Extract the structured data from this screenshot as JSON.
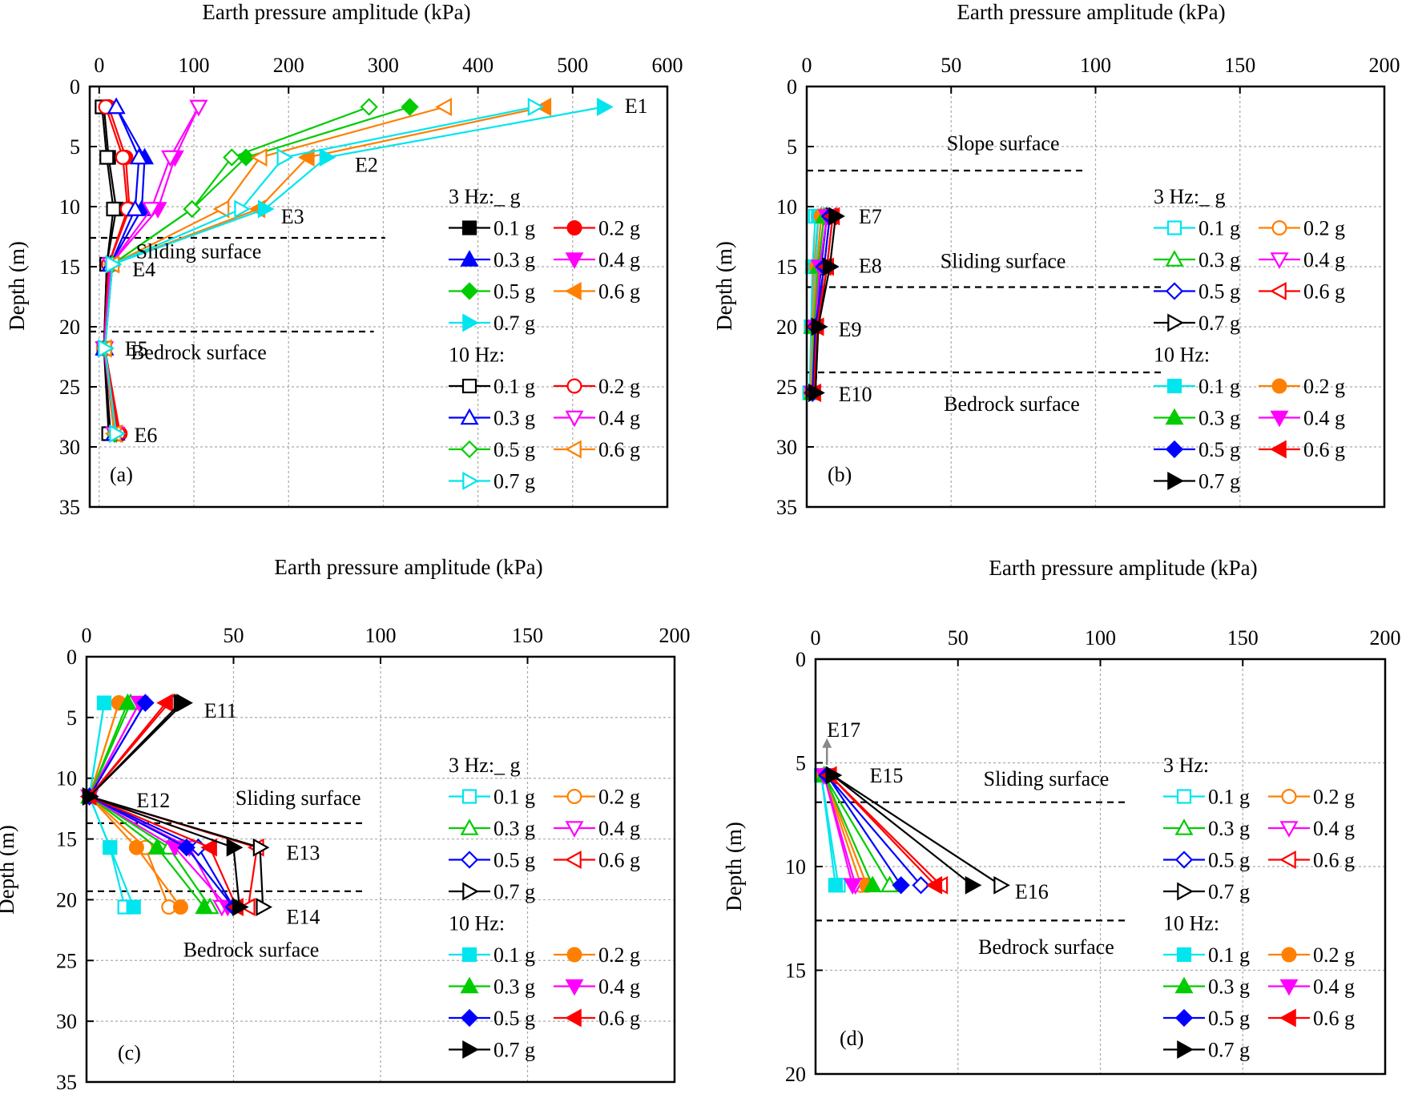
{
  "figure": {
    "panels": [
      {
        "id": "a",
        "x_title": "Earth pressure amplitude (kPa)",
        "y_title": "Depth (m)",
        "xlim": [
          -10,
          600
        ],
        "ylim": [
          0,
          35
        ],
        "xticks": [
          0,
          100,
          200,
          300,
          400,
          500,
          600
        ],
        "yticks": [
          0,
          5,
          10,
          15,
          20,
          25,
          30,
          35
        ],
        "panel_label": "(a)",
        "sensors": [
          {
            "label": "E1",
            "x": 555,
            "y": 1.6
          },
          {
            "label": "E2",
            "x": 270,
            "y": 6.5
          },
          {
            "label": "E3",
            "x": 192,
            "y": 10.8
          },
          {
            "label": "E4",
            "x": 35,
            "y": 15.2
          },
          {
            "label": "E5",
            "x": 27,
            "y": 21.8
          },
          {
            "label": "E6",
            "x": 37,
            "y": 29
          },
          {
            "label": "",
            "x": 0,
            "y": 0
          }
        ],
        "annotations": [
          {
            "text": "Sliding surface",
            "x": 105,
            "y": 14.3
          },
          {
            "text": "Bedrock surface",
            "x": 105,
            "y": 22.7
          }
        ],
        "dashed_lines": [
          {
            "y": 12.6,
            "x1": -10,
            "x2": 302
          },
          {
            "y": 20.4,
            "x1": -10,
            "x2": 290
          }
        ],
        "legend_headers": [
          "3 Hz:_ g",
          "10 Hz:"
        ]
      },
      {
        "id": "b",
        "x_title": "Earth pressure amplitude (kPa)",
        "y_title": "Depth (m)",
        "xlim": [
          0,
          200
        ],
        "ylim": [
          0,
          35
        ],
        "xticks": [
          0,
          50,
          100,
          150,
          200
        ],
        "yticks": [
          0,
          5,
          10,
          15,
          20,
          25,
          30,
          35
        ],
        "panel_label": "(b)",
        "sensors": [
          {
            "label": "E7",
            "x": 18,
            "y": 10.8
          },
          {
            "label": "E8",
            "x": 18,
            "y": 14.9
          },
          {
            "label": "E9",
            "x": 11,
            "y": 20.2
          },
          {
            "label": "E10",
            "x": 11,
            "y": 25.6
          },
          {
            "label": "",
            "x": 0,
            "y": 0
          }
        ],
        "annotations": [
          {
            "text": "Slope surface",
            "x": 68,
            "y": 5.3
          },
          {
            "text": "Sliding surface",
            "x": 68,
            "y": 15.1
          },
          {
            "text": "Bedrock surface",
            "x": 71,
            "y": 27
          }
        ],
        "dashed_lines": [
          {
            "y": 7,
            "x1": 0,
            "x2": 97
          },
          {
            "y": 16.7,
            "x1": 0,
            "x2": 123
          },
          {
            "y": 23.8,
            "x1": 0,
            "x2": 123
          }
        ],
        "legend_headers": [
          "3 Hz:_ g",
          "10 Hz:"
        ]
      },
      {
        "id": "c",
        "x_title": "Earth pressure amplitude (kPa)",
        "y_title": "Depth (m)",
        "xlim": [
          0,
          200
        ],
        "ylim": [
          0,
          35
        ],
        "xticks": [
          0,
          50,
          100,
          150,
          200
        ],
        "yticks": [
          0,
          5,
          10,
          15,
          20,
          25,
          30,
          35
        ],
        "panel_label": "(c)",
        "sensors": [
          {
            "label": "E11",
            "x": 40,
            "y": 4.4
          },
          {
            "label": "E12",
            "x": 17,
            "y": 11.8
          },
          {
            "label": "E13",
            "x": 68,
            "y": 16.1
          },
          {
            "label": "E14",
            "x": 68,
            "y": 21.4
          },
          {
            "label": "",
            "x": 0,
            "y": 0
          }
        ],
        "annotations": [
          {
            "text": "Sliding surface",
            "x": 72,
            "y": 12.2
          },
          {
            "text": "Bedrock surface",
            "x": 56,
            "y": 24.7
          }
        ],
        "dashed_lines": [
          {
            "y": 13.7,
            "x1": 0,
            "x2": 95
          },
          {
            "y": 19.3,
            "x1": 0,
            "x2": 95
          }
        ],
        "legend_headers": [
          "3 Hz:_ g",
          "10 Hz:"
        ]
      },
      {
        "id": "d",
        "x_title": "Earth pressure amplitude (kPa)",
        "y_title": "Depth (m)",
        "xlim": [
          0,
          200
        ],
        "ylim": [
          0,
          20
        ],
        "xticks": [
          0,
          50,
          100,
          150,
          200
        ],
        "yticks": [
          0,
          5,
          10,
          15,
          20
        ],
        "panel_label": "(d)",
        "sensors": [
          {
            "label": "E15",
            "x": 19,
            "y": 5.6
          },
          {
            "label": "E16",
            "x": 70,
            "y": 11.2
          },
          {
            "label": "E17",
            "x": 4,
            "y": 3.4
          },
          {
            "label": "",
            "x": 0,
            "y": 0
          }
        ],
        "annotations": [
          {
            "text": "Sliding surface",
            "x": 81,
            "y": 6.1
          },
          {
            "text": "Bedrock surface",
            "x": 81,
            "y": 14.2
          }
        ],
        "dashed_lines": [
          {
            "y": 6.9,
            "x1": 0,
            "x2": 109
          },
          {
            "y": 12.6,
            "x1": 0,
            "x2": 109
          }
        ],
        "legend_headers": [
          "3 Hz:",
          "10 Hz:"
        ]
      }
    ],
    "legend_labels": [
      "0.1 g",
      "0.2 g",
      "0.3 g",
      "0.4 g",
      "0.5 g",
      "0.6 g",
      "0.7 g"
    ]
  },
  "chart_data": [
    {
      "type": "line",
      "panel": "a",
      "x_axis": "Earth pressure amplitude (kPa)",
      "y_axis": "Depth (m)",
      "depths": [
        1.7,
        5.9,
        10.2,
        14.8,
        21.8,
        28.9
      ],
      "series": [
        {
          "name": "3 Hz 0.1 g",
          "values": [
            5,
            10,
            18,
            8,
            5,
            12
          ]
        },
        {
          "name": "3 Hz 0.2 g",
          "values": [
            10,
            28,
            32,
            10,
            6,
            22
          ]
        },
        {
          "name": "3 Hz 0.3 g",
          "values": [
            18,
            48,
            45,
            12,
            6,
            18
          ]
        },
        {
          "name": "3 Hz 0.4 g",
          "values": [
            105,
            80,
            62,
            12,
            6,
            18
          ]
        },
        {
          "name": "3 Hz 0.5 g",
          "values": [
            328,
            155,
            98,
            14,
            6,
            18
          ]
        },
        {
          "name": "3 Hz 0.6 g",
          "values": [
            470,
            220,
            168,
            14,
            6,
            18
          ]
        },
        {
          "name": "3 Hz 0.7 g",
          "values": [
            533,
            240,
            175,
            14,
            6,
            18
          ]
        },
        {
          "name": "10 Hz 0.1 g",
          "values": [
            3,
            8,
            15,
            8,
            5,
            10
          ]
        },
        {
          "name": "10 Hz 0.2 g",
          "values": [
            7,
            25,
            30,
            10,
            5,
            20
          ]
        },
        {
          "name": "10 Hz 0.3 g",
          "values": [
            18,
            42,
            38,
            12,
            5,
            16
          ]
        },
        {
          "name": "10 Hz 0.4 g",
          "values": [
            105,
            75,
            55,
            12,
            5,
            16
          ]
        },
        {
          "name": "10 Hz 0.5 g",
          "values": [
            285,
            140,
            98,
            14,
            6,
            16
          ]
        },
        {
          "name": "10 Hz 0.6 g",
          "values": [
            365,
            170,
            130,
            14,
            6,
            16
          ]
        },
        {
          "name": "10 Hz 0.7 g",
          "values": [
            460,
            195,
            150,
            14,
            6,
            18
          ]
        }
      ]
    },
    {
      "type": "line",
      "panel": "b",
      "x_axis": "Earth pressure amplitude (kPa)",
      "y_axis": "Depth (m)",
      "depths": [
        10.8,
        15.0,
        20.0,
        25.5
      ],
      "series": [
        {
          "name": "3 Hz 0.1 g",
          "values": [
            3,
            2,
            1.5,
            1
          ]
        },
        {
          "name": "3 Hz 0.2 g",
          "values": [
            4,
            2.5,
            2,
            1.5
          ]
        },
        {
          "name": "3 Hz 0.3 g",
          "values": [
            5,
            3.5,
            2,
            2
          ]
        },
        {
          "name": "3 Hz 0.4 g",
          "values": [
            6,
            4,
            2.5,
            2
          ]
        },
        {
          "name": "3 Hz 0.5 g",
          "values": [
            7,
            5,
            3,
            2
          ]
        },
        {
          "name": "3 Hz 0.6 g",
          "values": [
            8,
            6,
            3.5,
            2.5
          ]
        },
        {
          "name": "3 Hz 0.7 g",
          "values": [
            9,
            7,
            4,
            3
          ]
        },
        {
          "name": "10 Hz 0.1 g",
          "values": [
            4,
            3,
            2,
            1.5
          ]
        },
        {
          "name": "10 Hz 0.2 g",
          "values": [
            5,
            3.5,
            2,
            1.5
          ]
        },
        {
          "name": "10 Hz 0.3 g",
          "values": [
            6,
            4,
            2.5,
            2
          ]
        },
        {
          "name": "10 Hz 0.4 g",
          "values": [
            7,
            4.5,
            3,
            2
          ]
        },
        {
          "name": "10 Hz 0.5 g",
          "values": [
            8,
            6,
            3,
            2
          ]
        },
        {
          "name": "10 Hz 0.6 g",
          "values": [
            9,
            7,
            3.5,
            2.5
          ]
        },
        {
          "name": "10 Hz 0.7 g",
          "values": [
            10,
            8,
            4,
            3
          ]
        }
      ]
    },
    {
      "type": "line",
      "panel": "c",
      "x_axis": "Earth pressure amplitude (kPa)",
      "y_axis": "Depth (m)",
      "depths": [
        3.8,
        11.5,
        15.7,
        20.6
      ],
      "series": [
        {
          "name": "3 Hz 0.1 g",
          "values": [
            6,
            1,
            8,
            13
          ]
        },
        {
          "name": "3 Hz 0.2 g",
          "values": [
            11,
            1,
            20,
            28
          ]
        },
        {
          "name": "3 Hz 0.3 g",
          "values": [
            15,
            1,
            28,
            42
          ]
        },
        {
          "name": "3 Hz 0.4 g",
          "values": [
            18,
            1,
            35,
            46
          ]
        },
        {
          "name": "3 Hz 0.5 g",
          "values": [
            20,
            1,
            38,
            50
          ]
        },
        {
          "name": "3 Hz 0.6 g",
          "values": [
            28,
            1,
            58,
            55
          ]
        },
        {
          "name": "3 Hz 0.7 g",
          "values": [
            33,
            1,
            59,
            60
          ]
        },
        {
          "name": "10 Hz 0.1 g",
          "values": [
            6,
            1,
            8,
            16
          ]
        },
        {
          "name": "10 Hz 0.2 g",
          "values": [
            11,
            1,
            17,
            32
          ]
        },
        {
          "name": "10 Hz 0.3 g",
          "values": [
            14,
            1,
            24,
            40
          ]
        },
        {
          "name": "10 Hz 0.4 g",
          "values": [
            18,
            1,
            30,
            48
          ]
        },
        {
          "name": "10 Hz 0.5 g",
          "values": [
            20,
            1,
            34,
            50
          ]
        },
        {
          "name": "10 Hz 0.6 g",
          "values": [
            27,
            1,
            42,
            51
          ]
        },
        {
          "name": "10 Hz 0.7 g",
          "values": [
            32,
            1,
            50,
            52
          ]
        }
      ]
    },
    {
      "type": "line",
      "panel": "d",
      "x_axis": "Earth pressure amplitude (kPa)",
      "y_axis": "Depth (m)",
      "depths": [
        5.6,
        10.9
      ],
      "series": [
        {
          "name": "3 Hz 0.1 g",
          "values": [
            2,
            8
          ]
        },
        {
          "name": "3 Hz 0.2 g",
          "values": [
            3,
            16
          ]
        },
        {
          "name": "3 Hz 0.3 g",
          "values": [
            3,
            26
          ]
        },
        {
          "name": "3 Hz 0.4 g",
          "values": [
            3,
            14
          ]
        },
        {
          "name": "3 Hz 0.5 g",
          "values": [
            4,
            37
          ]
        },
        {
          "name": "3 Hz 0.6 g",
          "values": [
            5,
            44
          ]
        },
        {
          "name": "3 Hz 0.7 g",
          "values": [
            6,
            65
          ]
        },
        {
          "name": "10 Hz 0.1 g",
          "values": [
            2,
            7
          ]
        },
        {
          "name": "10 Hz 0.2 g",
          "values": [
            3,
            18
          ]
        },
        {
          "name": "10 Hz 0.3 g",
          "values": [
            3,
            20
          ]
        },
        {
          "name": "10 Hz 0.4 g",
          "values": [
            3,
            13
          ]
        },
        {
          "name": "10 Hz 0.5 g",
          "values": [
            4,
            30
          ]
        },
        {
          "name": "10 Hz 0.6 g",
          "values": [
            5,
            42
          ]
        },
        {
          "name": "10 Hz 0.7 g",
          "values": [
            6,
            55
          ]
        }
      ]
    }
  ]
}
